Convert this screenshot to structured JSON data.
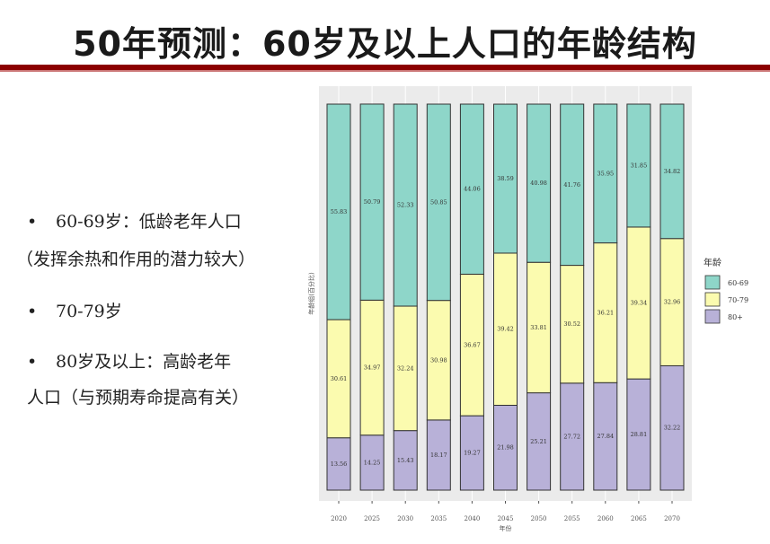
{
  "slide": {
    "title": "50年预测：60岁及以上人口的年龄结构",
    "bullets": [
      {
        "marker": "•",
        "text": "60-69岁：低龄老年人口"
      },
      {
        "marker": "",
        "text": "（发挥余热和作用的潜力较大）"
      },
      {
        "marker": "•",
        "text": "70-79岁"
      },
      {
        "marker": "•",
        "text": "80岁及以上：高龄老年"
      },
      {
        "marker": "",
        "text": "人口（与预期寿命提高有关）"
      }
    ]
  },
  "chart_data": {
    "type": "bar",
    "stacked": true,
    "xlabel": "年份",
    "ylabel": "年龄组(百分比)",
    "ylim": [
      0,
      100
    ],
    "categories": [
      "2020",
      "2025",
      "2030",
      "2035",
      "2040",
      "2045",
      "2050",
      "2055",
      "2060",
      "2065",
      "2070"
    ],
    "series": [
      {
        "name": "80+",
        "color": "#b8b1d8",
        "values": [
          13.56,
          14.25,
          15.43,
          18.17,
          19.27,
          21.98,
          25.21,
          27.72,
          27.84,
          28.81,
          32.22
        ]
      },
      {
        "name": "70-79",
        "color": "#fbfbaf",
        "values": [
          30.61,
          34.97,
          32.24,
          30.98,
          36.67,
          39.42,
          33.81,
          30.52,
          36.21,
          39.34,
          32.96
        ]
      },
      {
        "name": "60-69",
        "color": "#8ed6c9",
        "values": [
          55.83,
          50.79,
          52.33,
          50.85,
          44.06,
          38.59,
          40.98,
          41.76,
          35.95,
          31.85,
          34.82
        ]
      }
    ],
    "legend": {
      "title": "年龄",
      "position": "right",
      "order": [
        "60-69",
        "70-79",
        "80+"
      ]
    }
  }
}
